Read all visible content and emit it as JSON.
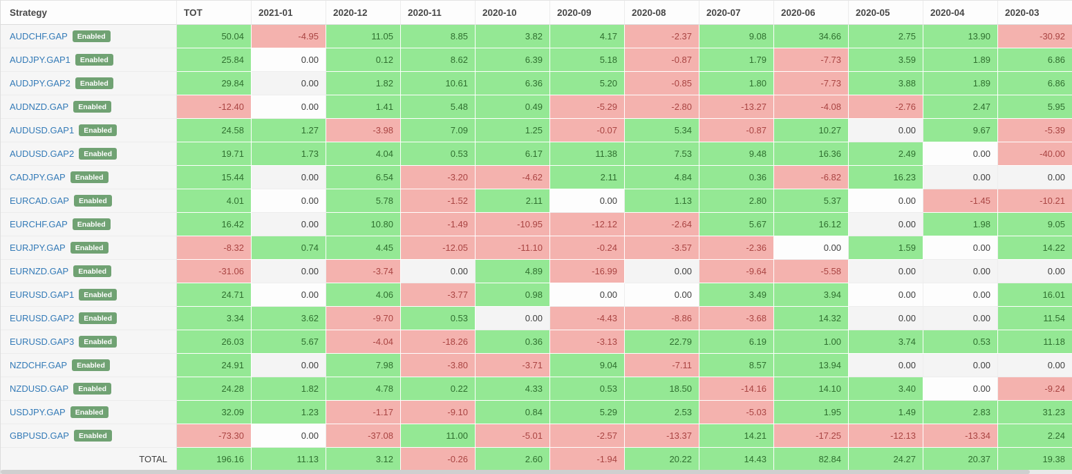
{
  "colors": {
    "positive_bg": "#94e894",
    "positive_text": "#2f6f2f",
    "negative_bg": "#f4b2ae",
    "negative_text": "#a94442",
    "link": "#337ab7",
    "badge_bg": "#70a273"
  },
  "table": {
    "columns": [
      "Strategy",
      "TOT",
      "2021-01",
      "2020-12",
      "2020-11",
      "2020-10",
      "2020-09",
      "2020-08",
      "2020-07",
      "2020-06",
      "2020-05",
      "2020-04",
      "2020-03"
    ],
    "rows": [
      {
        "name": "AUDCHF.GAP",
        "badge": "Enabled",
        "values": [
          "50.04",
          "-4.95",
          "11.05",
          "8.85",
          "3.82",
          "4.17",
          "-2.37",
          "9.08",
          "34.66",
          "2.75",
          "13.90",
          "-30.92"
        ]
      },
      {
        "name": "AUDJPY.GAP1",
        "badge": "Enabled",
        "values": [
          "25.84",
          "0.00",
          "0.12",
          "8.62",
          "6.39",
          "5.18",
          "-0.87",
          "1.79",
          "-7.73",
          "3.59",
          "1.89",
          "6.86"
        ]
      },
      {
        "name": "AUDJPY.GAP2",
        "badge": "Enabled",
        "values": [
          "29.84",
          "0.00",
          "1.82",
          "10.61",
          "6.36",
          "5.20",
          "-0.85",
          "1.80",
          "-7.73",
          "3.88",
          "1.89",
          "6.86"
        ]
      },
      {
        "name": "AUDNZD.GAP",
        "badge": "Enabled",
        "values": [
          "-12.40",
          "0.00",
          "1.41",
          "5.48",
          "0.49",
          "-5.29",
          "-2.80",
          "-13.27",
          "-4.08",
          "-2.76",
          "2.47",
          "5.95"
        ]
      },
      {
        "name": "AUDUSD.GAP1",
        "badge": "Enabled",
        "values": [
          "24.58",
          "1.27",
          "-3.98",
          "7.09",
          "1.25",
          "-0.07",
          "5.34",
          "-0.87",
          "10.27",
          "0.00",
          "9.67",
          "-5.39"
        ]
      },
      {
        "name": "AUDUSD.GAP2",
        "badge": "Enabled",
        "values": [
          "19.71",
          "1.73",
          "4.04",
          "0.53",
          "6.17",
          "11.38",
          "7.53",
          "9.48",
          "16.36",
          "2.49",
          "0.00",
          "-40.00"
        ]
      },
      {
        "name": "CADJPY.GAP",
        "badge": "Enabled",
        "values": [
          "15.44",
          "0.00",
          "6.54",
          "-3.20",
          "-4.62",
          "2.11",
          "4.84",
          "0.36",
          "-6.82",
          "16.23",
          "0.00",
          "0.00"
        ]
      },
      {
        "name": "EURCAD.GAP",
        "badge": "Enabled",
        "values": [
          "4.01",
          "0.00",
          "5.78",
          "-1.52",
          "2.11",
          "0.00",
          "1.13",
          "2.80",
          "5.37",
          "0.00",
          "-1.45",
          "-10.21"
        ]
      },
      {
        "name": "EURCHF.GAP",
        "badge": "Enabled",
        "values": [
          "16.42",
          "0.00",
          "10.80",
          "-1.49",
          "-10.95",
          "-12.12",
          "-2.64",
          "5.67",
          "16.12",
          "0.00",
          "1.98",
          "9.05"
        ]
      },
      {
        "name": "EURJPY.GAP",
        "badge": "Enabled",
        "values": [
          "-8.32",
          "0.74",
          "4.45",
          "-12.05",
          "-11.10",
          "-0.24",
          "-3.57",
          "-2.36",
          "0.00",
          "1.59",
          "0.00",
          "14.22"
        ]
      },
      {
        "name": "EURNZD.GAP",
        "badge": "Enabled",
        "values": [
          "-31.06",
          "0.00",
          "-3.74",
          "0.00",
          "4.89",
          "-16.99",
          "0.00",
          "-9.64",
          "-5.58",
          "0.00",
          "0.00",
          "0.00"
        ]
      },
      {
        "name": "EURUSD.GAP1",
        "badge": "Enabled",
        "values": [
          "24.71",
          "0.00",
          "4.06",
          "-3.77",
          "0.98",
          "0.00",
          "0.00",
          "3.49",
          "3.94",
          "0.00",
          "0.00",
          "16.01"
        ]
      },
      {
        "name": "EURUSD.GAP2",
        "badge": "Enabled",
        "values": [
          "3.34",
          "3.62",
          "-9.70",
          "0.53",
          "0.00",
          "-4.43",
          "-8.86",
          "-3.68",
          "14.32",
          "0.00",
          "0.00",
          "11.54"
        ]
      },
      {
        "name": "EURUSD.GAP3",
        "badge": "Enabled",
        "values": [
          "26.03",
          "5.67",
          "-4.04",
          "-18.26",
          "0.36",
          "-3.13",
          "22.79",
          "6.19",
          "1.00",
          "3.74",
          "0.53",
          "11.18"
        ]
      },
      {
        "name": "NZDCHF.GAP",
        "badge": "Enabled",
        "values": [
          "24.91",
          "0.00",
          "7.98",
          "-3.80",
          "-3.71",
          "9.04",
          "-7.11",
          "8.57",
          "13.94",
          "0.00",
          "0.00",
          "0.00"
        ]
      },
      {
        "name": "NZDUSD.GAP",
        "badge": "Enabled",
        "values": [
          "24.28",
          "1.82",
          "4.78",
          "0.22",
          "4.33",
          "0.53",
          "18.50",
          "-14.16",
          "14.10",
          "3.40",
          "0.00",
          "-9.24"
        ]
      },
      {
        "name": "USDJPY.GAP",
        "badge": "Enabled",
        "values": [
          "32.09",
          "1.23",
          "-1.17",
          "-9.10",
          "0.84",
          "5.29",
          "2.53",
          "-5.03",
          "1.95",
          "1.49",
          "2.83",
          "31.23"
        ]
      },
      {
        "name": "GBPUSD.GAP",
        "badge": "Enabled",
        "values": [
          "-73.30",
          "0.00",
          "-37.08",
          "11.00",
          "-5.01",
          "-2.57",
          "-13.37",
          "14.21",
          "-17.25",
          "-12.13",
          "-13.34",
          "2.24"
        ]
      }
    ],
    "total_row": {
      "label": "TOTAL",
      "values": [
        "196.16",
        "11.13",
        "3.12",
        "-0.26",
        "2.60",
        "-1.94",
        "20.22",
        "14.43",
        "82.84",
        "24.27",
        "20.37",
        "19.38"
      ]
    }
  }
}
